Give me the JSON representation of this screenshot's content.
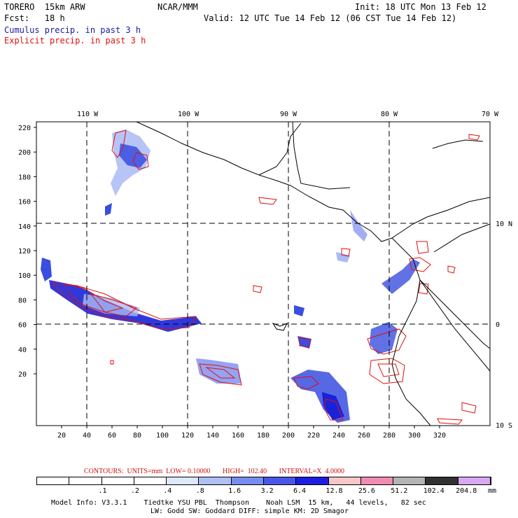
{
  "header": {
    "left_line1": "TORERO  15km ARW",
    "left_line2": "Fcst:   18 h",
    "center_line1": "NCAR/MMM",
    "right_line1": "Init: 18 UTC Mon 13 Feb 12",
    "right_line2": "Valid: 12 UTC Tue 14 Feb 12 (06 CST Tue 14 Feb 12)",
    "legend_cumulus": "Cumulus precip. in past 3 h",
    "legend_explicit": "Explicit precip. in past 3 h"
  },
  "map": {
    "lon_labels": [
      "110 W",
      "100 W",
      "90 W",
      "80 W",
      "70 W"
    ],
    "lat_labels": [
      "10 N",
      "0",
      "10 S"
    ],
    "y_ticks": [
      "220",
      "200",
      "180",
      "160",
      "140",
      "120",
      "100",
      "80",
      "60",
      "40",
      "20"
    ],
    "x_ticks": [
      "20",
      "40",
      "60",
      "80",
      "100",
      "120",
      "140",
      "160",
      "180",
      "200",
      "220",
      "240",
      "260",
      "280",
      "300",
      "320"
    ],
    "colors": {
      "cumulus": "#3a4ee0",
      "cumulus_dark": "#1a22d8",
      "cumulus_light": "#aabaf4",
      "explicit": "#e01010",
      "coast": "#000000",
      "grid": "#000000"
    }
  },
  "contours_line": "CONTOURS:  UNITS=mm  LOW= 0.10000       HIGH=  102.40       INTERVAL=X  4.0000",
  "colorbar": {
    "labels": [
      ".1",
      ".2",
      ".4",
      ".8",
      "1.6",
      "3.2",
      "6.4",
      "12.8",
      "25.6",
      "51.2",
      "102.4",
      "204.8"
    ],
    "unit": "mm",
    "colors": [
      "#ffffff",
      "#ffffff",
      "#ffffff",
      "#ffffff",
      "#dde8fb",
      "#b0c0f4",
      "#7a8cf0",
      "#4a56ea",
      "#1e1ee2",
      "#f8c8c8",
      "#f08cb4",
      "#b4b4b4",
      "#323232",
      "#d8a8f4"
    ]
  },
  "footer": {
    "line1": "Model Info: V3.3.1    Tiedtke YSU PBL  Thompson    Noah LSM  15 km,   44 levels,   82 sec",
    "line2": "LW: Godd SW: Goddard DIFF: simple KM: 2D Smagor"
  }
}
